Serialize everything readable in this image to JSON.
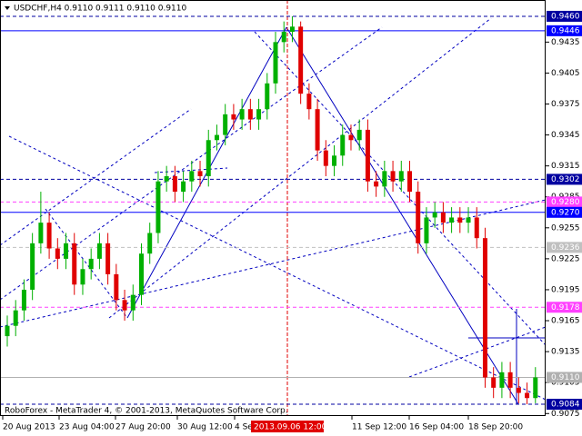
{
  "chart_data": {
    "type": "candlestick",
    "title": "USDCHF,H4  0.9110 0.9111 0.9110 0.9110",
    "footer": "RoboForex - MetaTrader 4, © 2001-2013, MetaQuotes Software Corp.",
    "up_color": "#00b000",
    "down_color": "#e00000",
    "open": [
      0.915,
      0.916,
      0.9175,
      0.9195,
      0.924,
      0.926,
      0.9235,
      0.9225,
      0.924,
      0.92,
      0.9215,
      0.9225,
      0.924,
      0.921,
      0.9185,
      0.9175,
      0.919,
      0.923,
      0.925,
      0.93,
      0.9305,
      0.929,
      0.93,
      0.931,
      0.9305,
      0.934,
      0.9345,
      0.9365,
      0.936,
      0.937,
      0.936,
      0.937,
      0.9395,
      0.9435,
      0.9445,
      0.945,
      0.9385,
      0.937,
      0.933,
      0.9315,
      0.9325,
      0.9345,
      0.934,
      0.935,
      0.93,
      0.9295,
      0.931,
      0.93,
      0.931,
      0.929,
      0.924,
      0.9265,
      0.927,
      0.926,
      0.9265,
      0.926,
      0.9265,
      0.9245,
      0.911,
      0.91,
      0.9115,
      0.91,
      0.9095,
      0.909
    ],
    "high": [
      0.917,
      0.9185,
      0.9205,
      0.925,
      0.929,
      0.927,
      0.9245,
      0.925,
      0.925,
      0.9225,
      0.9235,
      0.925,
      0.925,
      0.922,
      0.9195,
      0.92,
      0.924,
      0.926,
      0.931,
      0.9315,
      0.9315,
      0.931,
      0.932,
      0.932,
      0.935,
      0.9355,
      0.9375,
      0.9375,
      0.938,
      0.938,
      0.938,
      0.9405,
      0.9445,
      0.9455,
      0.946,
      0.9455,
      0.9395,
      0.938,
      0.934,
      0.9335,
      0.9355,
      0.9355,
      0.936,
      0.936,
      0.931,
      0.932,
      0.932,
      0.932,
      0.932,
      0.93,
      0.9275,
      0.928,
      0.928,
      0.9275,
      0.9275,
      0.9275,
      0.9275,
      0.9255,
      0.912,
      0.9125,
      0.9125,
      0.911,
      0.9105,
      0.912
    ],
    "low": [
      0.914,
      0.915,
      0.9165,
      0.9185,
      0.923,
      0.9225,
      0.9215,
      0.9215,
      0.919,
      0.919,
      0.9205,
      0.9215,
      0.92,
      0.9175,
      0.9165,
      0.9165,
      0.918,
      0.922,
      0.924,
      0.929,
      0.928,
      0.928,
      0.929,
      0.9295,
      0.9295,
      0.933,
      0.9335,
      0.935,
      0.935,
      0.935,
      0.935,
      0.936,
      0.9385,
      0.9425,
      0.9435,
      0.9375,
      0.936,
      0.932,
      0.9305,
      0.9305,
      0.9315,
      0.933,
      0.933,
      0.929,
      0.9285,
      0.9285,
      0.929,
      0.929,
      0.928,
      0.923,
      0.923,
      0.9255,
      0.925,
      0.925,
      0.925,
      0.925,
      0.9235,
      0.91,
      0.909,
      0.909,
      0.909,
      0.9085,
      0.9084,
      0.9085
    ],
    "close": [
      0.916,
      0.9175,
      0.9195,
      0.924,
      0.926,
      0.9235,
      0.9225,
      0.924,
      0.92,
      0.9215,
      0.9225,
      0.924,
      0.921,
      0.9185,
      0.9175,
      0.919,
      0.923,
      0.925,
      0.93,
      0.9305,
      0.929,
      0.93,
      0.931,
      0.9305,
      0.934,
      0.9345,
      0.9365,
      0.936,
      0.937,
      0.936,
      0.937,
      0.9395,
      0.9435,
      0.9445,
      0.945,
      0.9385,
      0.937,
      0.933,
      0.9315,
      0.9325,
      0.9345,
      0.934,
      0.935,
      0.93,
      0.9295,
      0.931,
      0.93,
      0.931,
      0.929,
      0.924,
      0.9265,
      0.927,
      0.926,
      0.9265,
      0.926,
      0.9265,
      0.9245,
      0.911,
      0.91,
      0.9115,
      0.91,
      0.9095,
      0.909,
      0.911
    ],
    "ylim": [
      0.90726,
      0.94758
    ],
    "yticks": [
      {
        "value": 0.9435,
        "label": "0.9435"
      },
      {
        "value": 0.9405,
        "label": "0.9405"
      },
      {
        "value": 0.9375,
        "label": "0.9375"
      },
      {
        "value": 0.9345,
        "label": "0.9345"
      },
      {
        "value": 0.9315,
        "label": "0.9315"
      },
      {
        "value": 0.9285,
        "label": "0.9285"
      },
      {
        "value": 0.9255,
        "label": "0.9255"
      },
      {
        "value": 0.9225,
        "label": "0.9225"
      },
      {
        "value": 0.9195,
        "label": "0.9195"
      },
      {
        "value": 0.9165,
        "label": "0.9165"
      },
      {
        "value": 0.9135,
        "label": "0.9135"
      },
      {
        "value": 0.9105,
        "label": "0.9105"
      },
      {
        "value": 0.9075,
        "label": "0.9075"
      }
    ],
    "levels": [
      {
        "price": {
          "value": 0.946,
          "label": "0.9460"
        },
        "line": "dashed",
        "color": "#0000a0"
      },
      {
        "price": {
          "value": 0.9446,
          "label": "0.9446"
        },
        "line": "solid",
        "color": "#0000ff"
      },
      {
        "price": {
          "value": 0.9302,
          "label": "0.9302"
        },
        "line": "dashed",
        "color": "#0000a0"
      },
      {
        "price": {
          "value": 0.928,
          "label": "0.9280"
        },
        "line": "dashed",
        "color": "#ff40ff"
      },
      {
        "price": {
          "value": 0.927,
          "label": "0.9270"
        },
        "line": "solid",
        "color": "#0000ff"
      },
      {
        "price": {
          "value": 0.9236,
          "label": "0.9236"
        },
        "line": "dashed",
        "color": "#c0c0c0"
      },
      {
        "price": {
          "value": 0.9178,
          "label": "0.9178"
        },
        "line": "dashed",
        "color": "#ff40ff"
      },
      {
        "price": {
          "value": 0.911,
          "label": "0.9110"
        },
        "line": "solid",
        "color": "#b0b0b0"
      },
      {
        "price": {
          "value": 0.9084,
          "label": "0.9084"
        },
        "line": "dashed",
        "color": "#0000a0"
      }
    ],
    "x_labels": [
      "20 Aug 2013",
      "23 Aug 04:00",
      "27 Aug 20:00",
      "30 Aug 12:00",
      "4 Se",
      "11 Sep 12:00",
      "16 Sep 04:00",
      "18 Sep 20:00"
    ],
    "cursor_label": "2013.09.06 12:00"
  }
}
